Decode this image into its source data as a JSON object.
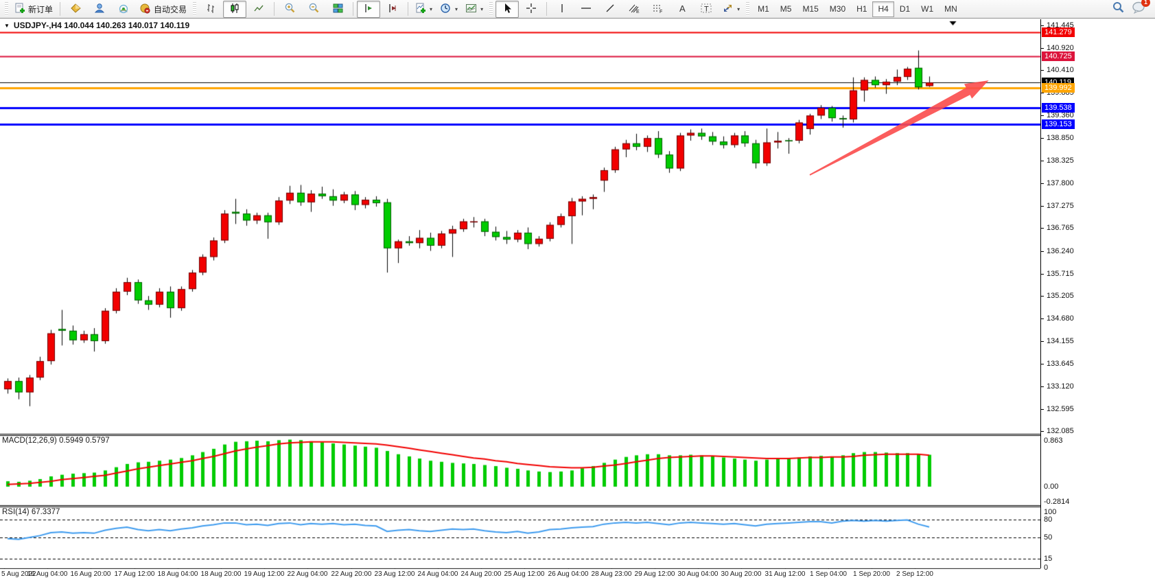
{
  "toolbar": {
    "new_order_label": "新订单",
    "autotrading_label": "自动交易",
    "timeframes": {
      "items": [
        "M1",
        "M5",
        "M15",
        "M30",
        "H1",
        "H4",
        "D1",
        "W1",
        "MN"
      ],
      "active": "H4"
    },
    "notification_count": "1",
    "icons": {
      "new-order-icon": "document-with-green-plus",
      "editor-icon": "gold-diamond",
      "community-icon": "blue-user",
      "signals-icon": "green-signal-arcs",
      "autotrading-icon": "gold-circle-red-dot",
      "bar-chart-icon": "ohlc-bars",
      "candlestick-icon": "candles",
      "line-chart-icon": "polyline",
      "zoom-in-icon": "magnifier-plus",
      "zoom-out-icon": "magnifier-minus",
      "tile-windows-icon": "window-tiles",
      "auto-scroll-icon": "line-arrow-right",
      "chart-shift-icon": "line-arrow-shift",
      "indicators-icon": "document-with-green-plus",
      "periods-icon": "clock",
      "templates-icon": "framed-chart",
      "cursor-icon": "pointer-arrow",
      "crosshair-icon": "crosshair",
      "vline-icon": "vertical-line",
      "hline-icon": "horizontal-line",
      "trendline-icon": "diagonal-line",
      "channel-icon": "parallel-lines-E",
      "fibonacci-icon": "dashed-lines-F",
      "text-icon": "letter-A",
      "label-icon": "letter-T-dashed-box",
      "arrows-icon": "double-arrows",
      "search-icon": "magnifier",
      "chat-icon": "speech-bubble-with-count"
    }
  },
  "chart_header": {
    "symbol_title": "USDJPY-,H4  140.044 140.263 140.017 140.119"
  },
  "indicators": {
    "macd_label": "MACD(12,26,9) 0.5949 0.5797",
    "rsi_label": "RSI(14) 67.3377"
  },
  "chart_data": [
    {
      "type": "candlestick",
      "symbol": "USDJPY-",
      "timeframe": "H4",
      "last_ohlc": {
        "open": "140.044",
        "high": "140.263",
        "low": "140.017",
        "close": "140.119"
      },
      "ylim": [
        132.04,
        141.58
      ],
      "up_color": "#f20000",
      "down_color": "#00cc00",
      "wick_color": "#000000",
      "price_ticks": [
        141.445,
        140.92,
        140.41,
        139.885,
        139.36,
        138.85,
        138.325,
        137.8,
        137.275,
        136.765,
        136.24,
        135.715,
        135.205,
        134.68,
        134.155,
        133.645,
        133.12,
        132.595,
        132.085
      ],
      "hlines": [
        {
          "price": 141.279,
          "label": "141.279",
          "color": "#f20000",
          "width": 2
        },
        {
          "price": 140.725,
          "label": "140.725",
          "color": "#dc143c",
          "width": 2
        },
        {
          "price": 140.119,
          "label": "140.119",
          "color": "#000000",
          "width": 1,
          "current": true
        },
        {
          "price": 139.992,
          "label": "139.992",
          "color": "#ffa500",
          "width": 3
        },
        {
          "price": 139.538,
          "label": "139.538",
          "color": "#0000ff",
          "width": 3
        },
        {
          "price": 139.153,
          "label": "139.153",
          "color": "#0000ff",
          "width": 3
        }
      ],
      "shift_marker_index": 87.5,
      "annotations": [
        {
          "type": "trend-arrow",
          "color": "#fb4b4b",
          "from": {
            "index": 74.3,
            "price": 137.99
          },
          "to": {
            "index": 90.8,
            "price": 140.17
          }
        }
      ],
      "x_labels": [
        "5 Aug 2022",
        "16 Aug 04:00",
        "16 Aug 20:00",
        "17 Aug 12:00",
        "18 Aug 04:00",
        "18 Aug 20:00",
        "19 Aug 12:00",
        "22 Aug 04:00",
        "22 Aug 20:00",
        "23 Aug 12:00",
        "24 Aug 04:00",
        "24 Aug 20:00",
        "25 Aug 12:00",
        "26 Aug 04:00",
        "28 Aug 23:00",
        "29 Aug 12:00",
        "30 Aug 04:00",
        "30 Aug 20:00",
        "31 Aug 12:00",
        "1 Sep 04:00",
        "1 Sep 20:00",
        "2 Sep 12:00"
      ],
      "labels_every_n_candles": 4,
      "ohlc": [
        [
          133.05,
          133.3,
          132.95,
          133.24
        ],
        [
          133.24,
          133.32,
          132.82,
          132.98
        ],
        [
          132.98,
          133.38,
          132.66,
          133.32
        ],
        [
          133.32,
          133.8,
          133.26,
          133.7
        ],
        [
          133.7,
          134.42,
          133.62,
          134.34
        ],
        [
          134.44,
          134.88,
          134.06,
          134.4
        ],
        [
          134.4,
          134.52,
          134.08,
          134.18
        ],
        [
          134.18,
          134.4,
          134.12,
          134.32
        ],
        [
          134.32,
          134.46,
          133.92,
          134.16
        ],
        [
          134.16,
          134.92,
          134.1,
          134.86
        ],
        [
          134.86,
          135.38,
          134.8,
          135.3
        ],
        [
          135.3,
          135.62,
          135.22,
          135.52
        ],
        [
          135.52,
          135.58,
          135.02,
          135.1
        ],
        [
          135.1,
          135.2,
          134.88,
          135.0
        ],
        [
          135.0,
          135.38,
          134.94,
          135.3
        ],
        [
          135.3,
          135.42,
          134.7,
          134.92
        ],
        [
          134.92,
          135.42,
          134.86,
          135.36
        ],
        [
          135.36,
          135.8,
          135.3,
          135.74
        ],
        [
          135.74,
          136.16,
          135.68,
          136.1
        ],
        [
          136.1,
          136.55,
          136.02,
          136.48
        ],
        [
          136.48,
          137.18,
          136.42,
          137.1
        ],
        [
          137.14,
          137.44,
          136.86,
          137.1
        ],
        [
          137.1,
          137.2,
          136.82,
          136.94
        ],
        [
          136.94,
          137.12,
          136.86,
          137.06
        ],
        [
          137.06,
          137.12,
          136.52,
          136.9
        ],
        [
          136.9,
          137.48,
          136.84,
          137.4
        ],
        [
          137.4,
          137.74,
          137.32,
          137.58
        ],
        [
          137.58,
          137.76,
          137.28,
          137.36
        ],
        [
          137.36,
          137.64,
          137.14,
          137.56
        ],
        [
          137.56,
          137.72,
          137.44,
          137.5
        ],
        [
          137.5,
          137.66,
          137.28,
          137.4
        ],
        [
          137.4,
          137.6,
          137.34,
          137.54
        ],
        [
          137.54,
          137.62,
          137.18,
          137.3
        ],
        [
          137.3,
          137.48,
          137.22,
          137.42
        ],
        [
          137.42,
          137.5,
          137.26,
          137.34
        ],
        [
          137.36,
          137.44,
          135.74,
          136.3
        ],
        [
          136.3,
          136.5,
          135.96,
          136.46
        ],
        [
          136.46,
          136.58,
          136.36,
          136.42
        ],
        [
          136.42,
          136.72,
          136.3,
          136.54
        ],
        [
          136.54,
          136.66,
          136.24,
          136.36
        ],
        [
          136.36,
          136.7,
          136.3,
          136.64
        ],
        [
          136.64,
          136.82,
          136.1,
          136.74
        ],
        [
          136.74,
          136.98,
          136.68,
          136.92
        ],
        [
          136.9,
          137.02,
          136.78,
          136.92
        ],
        [
          136.92,
          136.98,
          136.58,
          136.68
        ],
        [
          136.68,
          136.8,
          136.48,
          136.56
        ],
        [
          136.56,
          136.7,
          136.4,
          136.5
        ],
        [
          136.5,
          136.72,
          136.44,
          136.66
        ],
        [
          136.66,
          136.78,
          136.28,
          136.4
        ],
        [
          136.4,
          136.58,
          136.34,
          136.52
        ],
        [
          136.52,
          136.9,
          136.46,
          136.84
        ],
        [
          136.84,
          137.1,
          136.78,
          137.04
        ],
        [
          137.04,
          137.46,
          136.4,
          137.38
        ],
        [
          137.38,
          137.5,
          137.06,
          137.44
        ],
        [
          137.44,
          137.54,
          137.2,
          137.48
        ],
        [
          137.86,
          138.16,
          137.6,
          138.1
        ],
        [
          138.1,
          138.64,
          138.04,
          138.58
        ],
        [
          138.58,
          138.8,
          138.4,
          138.72
        ],
        [
          138.72,
          138.94,
          138.56,
          138.64
        ],
        [
          138.64,
          138.9,
          138.52,
          138.84
        ],
        [
          138.84,
          139.0,
          138.38,
          138.46
        ],
        [
          138.46,
          138.54,
          138.04,
          138.14
        ],
        [
          138.14,
          138.96,
          138.08,
          138.9
        ],
        [
          138.9,
          139.04,
          138.78,
          138.96
        ],
        [
          138.96,
          139.06,
          138.8,
          138.88
        ],
        [
          138.88,
          138.98,
          138.68,
          138.76
        ],
        [
          138.76,
          138.88,
          138.6,
          138.68
        ],
        [
          138.68,
          138.96,
          138.62,
          138.9
        ],
        [
          138.9,
          139.0,
          138.64,
          138.72
        ],
        [
          138.72,
          138.8,
          138.14,
          138.26
        ],
        [
          138.26,
          139.06,
          138.2,
          138.74
        ],
        [
          138.74,
          138.98,
          138.6,
          138.78
        ],
        [
          138.79,
          138.84,
          138.48,
          138.77
        ],
        [
          138.78,
          139.26,
          138.72,
          139.2
        ],
        [
          139.05,
          139.4,
          138.92,
          139.36
        ],
        [
          139.36,
          139.6,
          139.28,
          139.54
        ],
        [
          139.54,
          139.58,
          139.22,
          139.3
        ],
        [
          139.3,
          139.36,
          139.08,
          139.27
        ],
        [
          139.27,
          140.24,
          139.2,
          139.94
        ],
        [
          139.94,
          140.24,
          139.68,
          140.18
        ],
        [
          140.18,
          140.26,
          140.0,
          140.06
        ],
        [
          140.06,
          140.2,
          139.86,
          140.14
        ],
        [
          140.14,
          140.42,
          140.06,
          140.25
        ],
        [
          140.25,
          140.48,
          140.18,
          140.44
        ],
        [
          140.46,
          140.86,
          139.96,
          140.01
        ],
        [
          140.04,
          140.26,
          140.02,
          140.12
        ]
      ]
    },
    {
      "type": "bar",
      "name": "MACD",
      "params": "(12,26,9)",
      "values_label": "0.5949 0.5797",
      "ylim": [
        -0.33,
        0.94
      ],
      "hist_color": "#00cc00",
      "signal_color": "#f20000",
      "scale_ticks": [
        {
          "v": 0.863,
          "label": "0.863"
        },
        {
          "v": 0.0,
          "label": "0.00"
        },
        {
          "v": -0.2814,
          "label": "-0.2814"
        }
      ],
      "hist": [
        0.1,
        0.09,
        0.11,
        0.14,
        0.19,
        0.22,
        0.24,
        0.25,
        0.26,
        0.3,
        0.36,
        0.42,
        0.45,
        0.46,
        0.48,
        0.5,
        0.53,
        0.58,
        0.64,
        0.7,
        0.78,
        0.83,
        0.84,
        0.85,
        0.84,
        0.86,
        0.87,
        0.86,
        0.84,
        0.82,
        0.8,
        0.78,
        0.76,
        0.74,
        0.72,
        0.66,
        0.6,
        0.56,
        0.52,
        0.48,
        0.46,
        0.44,
        0.43,
        0.42,
        0.4,
        0.38,
        0.35,
        0.33,
        0.3,
        0.28,
        0.27,
        0.28,
        0.3,
        0.34,
        0.38,
        0.44,
        0.5,
        0.55,
        0.58,
        0.6,
        0.6,
        0.58,
        0.58,
        0.59,
        0.58,
        0.56,
        0.54,
        0.52,
        0.5,
        0.48,
        0.5,
        0.51,
        0.52,
        0.54,
        0.56,
        0.57,
        0.56,
        0.58,
        0.62,
        0.64,
        0.64,
        0.63,
        0.62,
        0.62,
        0.6,
        0.59
      ],
      "signal": [
        0.04,
        0.05,
        0.06,
        0.08,
        0.1,
        0.13,
        0.15,
        0.17,
        0.19,
        0.21,
        0.25,
        0.29,
        0.33,
        0.36,
        0.39,
        0.42,
        0.45,
        0.48,
        0.52,
        0.56,
        0.61,
        0.66,
        0.7,
        0.73,
        0.76,
        0.79,
        0.81,
        0.82,
        0.83,
        0.83,
        0.83,
        0.82,
        0.81,
        0.8,
        0.79,
        0.77,
        0.74,
        0.71,
        0.68,
        0.65,
        0.62,
        0.59,
        0.56,
        0.53,
        0.51,
        0.48,
        0.46,
        0.43,
        0.41,
        0.39,
        0.37,
        0.36,
        0.35,
        0.35,
        0.36,
        0.38,
        0.4,
        0.43,
        0.46,
        0.49,
        0.52,
        0.54,
        0.55,
        0.56,
        0.57,
        0.57,
        0.56,
        0.55,
        0.54,
        0.53,
        0.52,
        0.52,
        0.52,
        0.53,
        0.54,
        0.54,
        0.55,
        0.55,
        0.56,
        0.58,
        0.59,
        0.6,
        0.6,
        0.6,
        0.6,
        0.58
      ]
    },
    {
      "type": "line",
      "name": "RSI",
      "params": "(14)",
      "value_label": "67.3377",
      "ylim": [
        0,
        100
      ],
      "line_color": "#3d9bef",
      "levels": [
        80,
        50,
        15
      ],
      "scale_ticks": [
        {
          "v": 100,
          "label": "100"
        },
        {
          "v": 80,
          "label": "80"
        },
        {
          "v": 50,
          "label": "50"
        },
        {
          "v": 15,
          "label": "15"
        },
        {
          "v": 0,
          "label": "0"
        }
      ],
      "values": [
        48,
        47,
        50,
        53,
        58,
        59,
        57,
        58,
        57,
        62,
        65,
        67,
        63,
        61,
        63,
        61,
        64,
        66,
        69,
        71,
        74,
        74,
        71,
        72,
        70,
        73,
        74,
        71,
        73,
        72,
        73,
        71,
        72,
        70,
        69,
        60,
        62,
        63,
        61,
        60,
        62,
        64,
        63,
        64,
        61,
        59,
        58,
        60,
        57,
        59,
        63,
        64,
        66,
        67,
        68,
        72,
        74,
        75,
        74,
        75,
        73,
        71,
        74,
        75,
        74,
        73,
        72,
        73,
        71,
        69,
        72,
        73,
        74,
        75,
        76,
        76,
        74,
        77,
        78,
        77,
        78,
        77,
        78,
        79,
        72,
        67.34
      ]
    }
  ]
}
